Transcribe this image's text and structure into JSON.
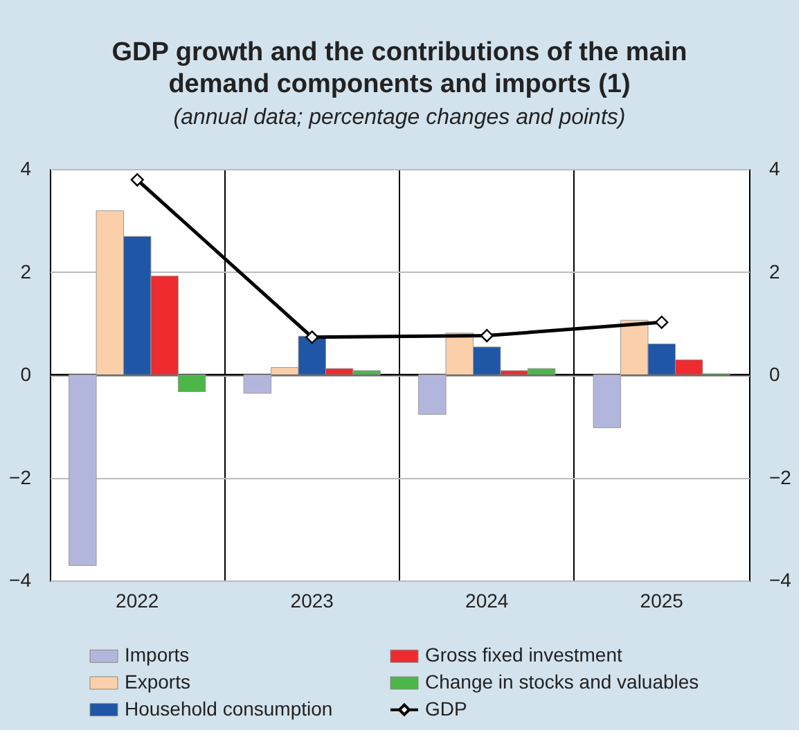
{
  "chart_data": {
    "type": "bar",
    "title": "GDP growth and the contributions of the main demand components and imports (1)",
    "subtitle": "(annual data; percentage changes and points)",
    "categories": [
      "2022",
      "2023",
      "2024",
      "2025"
    ],
    "series": [
      {
        "name": "Imports",
        "color": "#b3b6dc",
        "values": [
          -3.71,
          -0.36,
          -0.77,
          -1.03
        ]
      },
      {
        "name": "Exports",
        "color": "#fbcfa9",
        "values": [
          3.19,
          0.14,
          0.81,
          1.06
        ]
      },
      {
        "name": "Household consumption",
        "color": "#1f56a5",
        "values": [
          2.69,
          0.75,
          0.54,
          0.6
        ]
      },
      {
        "name": "Gross fixed investment",
        "color": "#ee2b2e",
        "values": [
          1.92,
          0.12,
          0.08,
          0.29
        ]
      },
      {
        "name": "Change in stocks and valuables",
        "color": "#4cb648",
        "values": [
          -0.33,
          0.08,
          0.12,
          0.02
        ]
      },
      {
        "name": "GDP",
        "color": "#000000",
        "type": "line",
        "marker": "diamond",
        "values": [
          3.79,
          0.73,
          0.76,
          1.02
        ]
      }
    ],
    "ylim": [
      -4,
      4
    ],
    "yticks": [
      -4,
      -2,
      0,
      2,
      4
    ],
    "y2lim": [
      -4,
      4
    ],
    "y2ticks": [
      -4,
      -2,
      0,
      2,
      4
    ],
    "ref_lines": [
      {
        "axis": "y",
        "value": 0,
        "color": "#000000"
      }
    ],
    "grid": true,
    "legend": "bottom"
  }
}
